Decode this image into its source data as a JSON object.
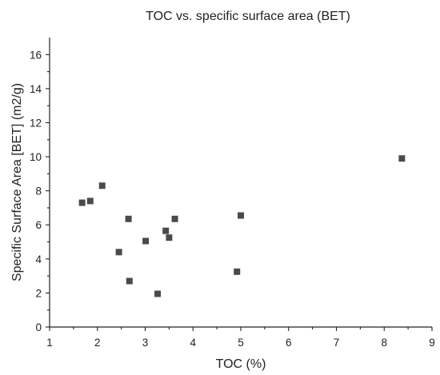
{
  "chart_data": {
    "type": "scatter",
    "title": "TOC vs. specific surface area (BET)",
    "xlabel": "TOC (%)",
    "ylabel": "Specific Surface Area [BET] (m2/g)",
    "xlim": [
      1,
      9
    ],
    "ylim": [
      0,
      17
    ],
    "xticks": [
      1,
      2,
      3,
      4,
      5,
      6,
      7,
      8,
      9
    ],
    "yticks": [
      0,
      2,
      4,
      6,
      8,
      10,
      12,
      14,
      16
    ],
    "grid": false,
    "legend": "none",
    "marker": "square",
    "marker_color": "#4a4a4a",
    "series": [
      {
        "x": [
          1.68,
          1.85,
          2.1,
          2.45,
          2.65,
          2.67,
          3.01,
          3.26,
          3.43,
          3.5,
          3.62,
          4.92,
          5.0,
          8.37
        ],
        "y": [
          7.3,
          7.4,
          8.3,
          4.4,
          6.35,
          2.7,
          5.05,
          1.95,
          5.65,
          5.25,
          6.35,
          3.25,
          6.55,
          9.9
        ]
      }
    ]
  }
}
